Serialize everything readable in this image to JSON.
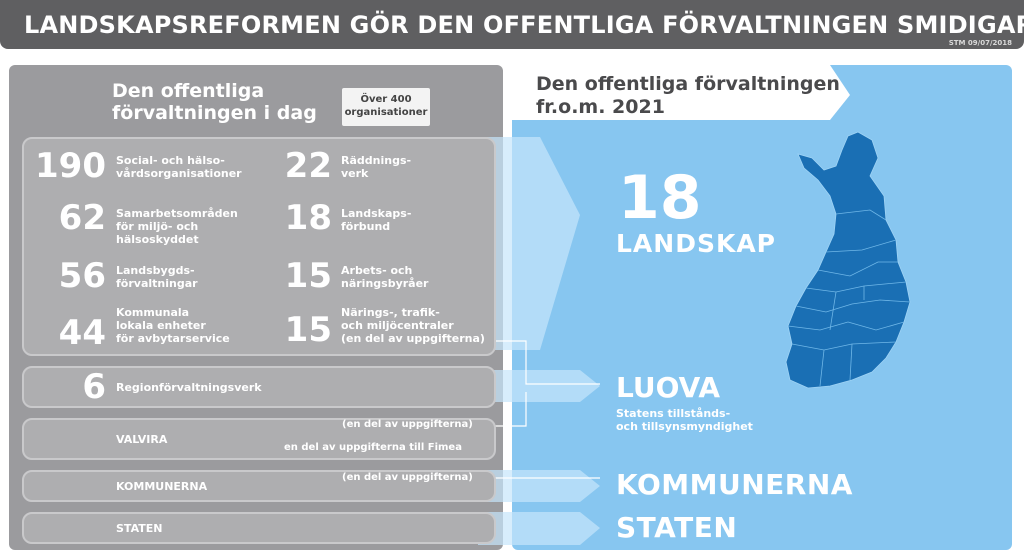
{
  "title": "LANDSKAPSREFORMEN GÖR DEN OFFENTLIGA FÖRVALTNINGEN SMIDIGARE",
  "stamp": "STM 09/07/2018",
  "left": {
    "heading_line1": "Den offentliga",
    "heading_line2": "förvaltningen i dag",
    "count_line1": "Över 400",
    "count_line2": "organisationer",
    "orgs": [
      {
        "number": "190",
        "line1": "Social- och hälso-",
        "line2": "vårdsorganisationer",
        "line3": ""
      },
      {
        "number": "22",
        "line1": "Räddnings-",
        "line2": "verk",
        "line3": ""
      },
      {
        "number": "62",
        "line1": "Samarbetsområden",
        "line2": "för miljö- och",
        "line3": "hälsoskyddet"
      },
      {
        "number": "18",
        "line1": "Landskaps-",
        "line2": "förbund",
        "line3": ""
      },
      {
        "number": "56",
        "line1": "Landsbygds-",
        "line2": "förvaltningar",
        "line3": ""
      },
      {
        "number": "15",
        "line1": "Arbets- och",
        "line2": "näringsbyråer",
        "line3": ""
      },
      {
        "number": "44",
        "line1": "Kommunala",
        "line2": "lokala enheter",
        "line3": "för avbytarservice"
      },
      {
        "number": "15",
        "line1": "Närings-, trafik-",
        "line2": "och miljöcentraler",
        "line3": "(en del av uppgifterna)"
      }
    ],
    "regional": {
      "number": "6",
      "label": "Regionförvaltningsverk"
    },
    "valvira": {
      "label": "VALVIRA",
      "note1": "(en del av uppgifterna)",
      "note2": "en del av uppgifterna till Fimea"
    },
    "kommunerna": {
      "label": "KOMMUNERNA",
      "note": "(en del av uppgifterna)"
    },
    "staten": {
      "label": "STATEN"
    }
  },
  "right": {
    "heading_line1": "Den offentliga förvaltningen",
    "heading_line2": "fr.o.m. 2021",
    "landskap_number": "18",
    "landskap_label": "LANDSKAP",
    "luova_title": "LUOVA",
    "luova_sub1": "Statens tillstånds-",
    "luova_sub2": "och tillsynsmyndighet",
    "kommunerna": "KOMMUNERNA",
    "staten": "STATEN"
  },
  "colors": {
    "title_bg": "#5f5f61",
    "left_bg": "#9b9b9e",
    "right_bg": "#87c6f0",
    "map_fill": "#1a6fb4"
  }
}
